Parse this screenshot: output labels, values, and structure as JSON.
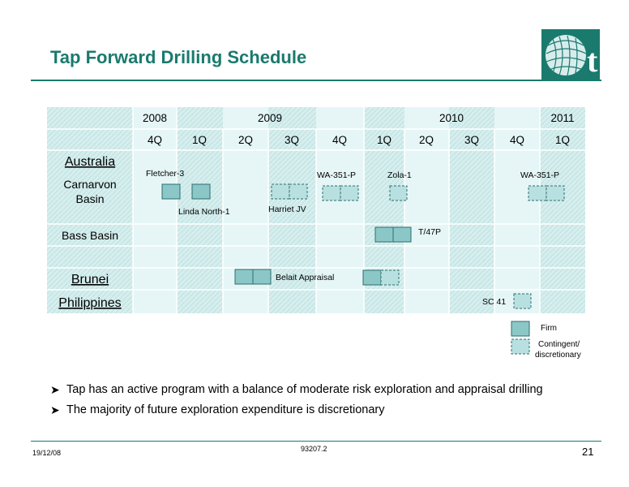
{
  "title": "Tap Forward Drilling Schedule",
  "logo_letter": "t",
  "years": [
    {
      "label": "2008",
      "from": 0,
      "to": 1
    },
    {
      "label": "2009",
      "from": 1,
      "to": 5
    },
    {
      "label": "2010",
      "from": 5,
      "to": 9
    },
    {
      "label": "2011",
      "from": 9,
      "to": 10
    }
  ],
  "quarters": [
    "4Q",
    "1Q",
    "2Q",
    "3Q",
    "4Q",
    "1Q",
    "2Q",
    "3Q",
    "4Q",
    "1Q"
  ],
  "row_labels": {
    "australia": "Australia",
    "carnarvon_line1": "Carnarvon",
    "carnarvon_line2": "Basin",
    "bass": "Bass Basin",
    "brunei": "Brunei",
    "philippines": "Philippines"
  },
  "wells": {
    "fletcher": "Fletcher-3",
    "linda": "Linda North-1",
    "harriet": "Harriet JV",
    "wa351_a": "WA-351-P",
    "zola": "Zola-1",
    "wa351_b": "WA-351-P",
    "t47p": "T/47P",
    "belait": "Belait Appraisal",
    "sc41": "SC 41"
  },
  "legend": {
    "firm": "Firm",
    "contingent_line1": "Contingent/",
    "contingent_line2": "discretionary"
  },
  "bullets": [
    "Tap has an active program with a balance of moderate risk exploration and appraisal drilling",
    "The majority of future exploration expenditure is discretionary"
  ],
  "footer": {
    "date": "19/12/08",
    "code": "93207.2",
    "page": "21"
  },
  "colors": {
    "brand": "#1a7a6e",
    "cell_light": "#dff5f5",
    "cell_pattern": "#cfeaea",
    "firm_fill": "#8cc7c7",
    "contingent_fill": "#b9e0e0"
  }
}
